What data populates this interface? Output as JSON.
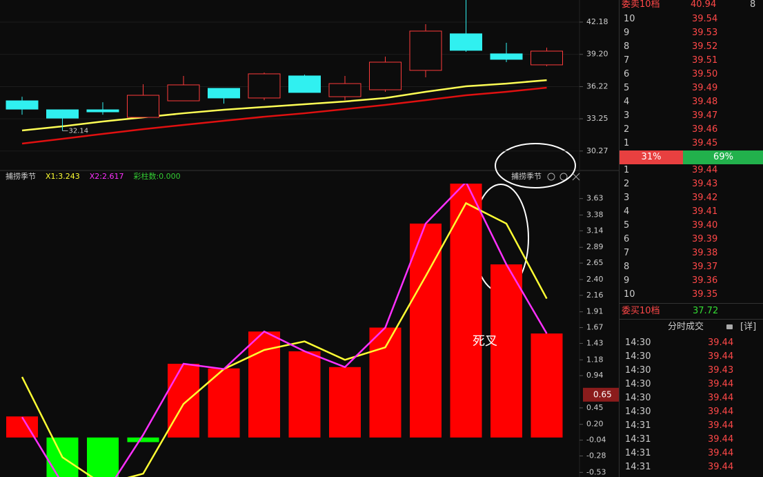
{
  "chart_data": [
    {
      "type": "candlestick",
      "open": [
        34.91,
        34.08,
        34.08,
        33.38,
        34.91,
        36.06,
        35.17,
        37.21,
        35.29,
        35.93,
        37.72,
        41.1,
        39.25,
        38.23
      ],
      "high": [
        35.29,
        34.1,
        34.78,
        36.44,
        37.21,
        36.06,
        37.52,
        37.33,
        37.21,
        38.99,
        41.99,
        44.22,
        40.27,
        39.82
      ],
      "low": [
        33.63,
        32.14,
        33.63,
        33.38,
        34.91,
        34.65,
        34.97,
        35.68,
        34.97,
        35.74,
        37.08,
        39.44,
        38.48,
        38.1
      ],
      "close": [
        34.14,
        33.31,
        33.89,
        35.42,
        36.38,
        35.17,
        37.4,
        35.68,
        36.5,
        38.48,
        41.35,
        39.57,
        38.74,
        39.5
      ],
      "up_color": "#ff3b3b",
      "down_color": "#30f0f0",
      "series": [
        {
          "color": "#ffff55",
          "values": [
            32.17,
            32.55,
            33.0,
            33.38,
            33.76,
            34.08,
            34.34,
            34.59,
            34.85,
            35.17,
            35.74,
            36.25,
            36.5,
            36.82
          ]
        },
        {
          "color": "#e01010",
          "values": [
            30.96,
            31.4,
            31.85,
            32.29,
            32.68,
            33.06,
            33.44,
            33.76,
            34.14,
            34.53,
            34.97,
            35.42,
            35.74,
            36.12
          ]
        }
      ],
      "annotation": {
        "text": "32.14",
        "index": 1,
        "value": 32.14
      },
      "ylim": [
        28.6,
        44.22
      ],
      "yticks": [
        42.18,
        {
          "value": 39.2,
          "label": "39.20"
        },
        36.22,
        33.25,
        30.27
      ],
      "grid": true
    },
    {
      "type": "combo",
      "title": "捕捞季节",
      "indicator_label": "捕捞季节",
      "series": [
        {
          "name": "X1:3.243",
          "type": "line",
          "color": "#ffff33",
          "values": [
            0.92,
            -0.3,
            -0.71,
            -0.55,
            0.51,
            1.04,
            1.33,
            1.46,
            1.18,
            1.37,
            2.45,
            3.56,
            3.25,
            2.11
          ]
        },
        {
          "name": "X2:2.617",
          "type": "line",
          "color": "#ff30ff",
          "values": [
            0.31,
            -0.7,
            -0.91,
            0.04,
            1.12,
            1.04,
            1.61,
            1.31,
            1.07,
            1.67,
            3.25,
            3.88,
            2.63,
            1.58
          ]
        },
        {
          "name": "彩柱数:0.000",
          "type": "bar",
          "color": "#ff0000",
          "negative_color": "#00ff00",
          "legend_color": "#33cc33",
          "values": [
            0.32,
            -0.7,
            -0.7,
            -0.07,
            1.12,
            1.05,
            1.61,
            1.31,
            1.07,
            1.67,
            3.25,
            3.88,
            2.63,
            1.58
          ]
        }
      ],
      "annotation": {
        "text": "死叉"
      },
      "cursor_value": 0.65,
      "ylim": [
        -0.6,
        3.92
      ],
      "yticks": [
        3.63,
        3.38,
        3.14,
        2.89,
        2.65,
        {
          "value": 2.4,
          "label": "2.40"
        },
        2.16,
        1.91,
        1.67,
        1.43,
        1.18,
        0.94,
        0.45,
        {
          "value": 0.2,
          "label": "0.20"
        },
        -0.04,
        -0.28,
        -0.53
      ],
      "grid": false
    }
  ],
  "order_book": {
    "ask_title": "委卖10档",
    "ask_ref": "40.94",
    "ask_extra": "8",
    "asks": [
      [
        10,
        "39.54"
      ],
      [
        9,
        "39.53"
      ],
      [
        8,
        "39.52"
      ],
      [
        7,
        "39.51"
      ],
      [
        6,
        "39.50"
      ],
      [
        5,
        "39.49"
      ],
      [
        4,
        "39.48"
      ],
      [
        3,
        "39.47"
      ],
      [
        2,
        "39.46"
      ],
      [
        1,
        "39.45"
      ]
    ],
    "ratio": [
      "31%",
      "69%"
    ],
    "bids": [
      [
        1,
        "39.44"
      ],
      [
        2,
        "39.43"
      ],
      [
        3,
        "39.42"
      ],
      [
        4,
        "39.41"
      ],
      [
        5,
        "39.40"
      ],
      [
        6,
        "39.39"
      ],
      [
        7,
        "39.38"
      ],
      [
        8,
        "39.37"
      ],
      [
        9,
        "39.36"
      ],
      [
        10,
        "39.35"
      ]
    ],
    "bid_title": "委买10档",
    "bid_ref": "37.72"
  },
  "trades": {
    "title": "分时成交",
    "detail": "[详]",
    "rows": [
      [
        "14:30",
        "39.44"
      ],
      [
        "14:30",
        "39.44"
      ],
      [
        "14:30",
        "39.43"
      ],
      [
        "14:30",
        "39.44"
      ],
      [
        "14:30",
        "39.44"
      ],
      [
        "14:30",
        "39.44"
      ],
      [
        "14:31",
        "39.44"
      ],
      [
        "14:31",
        "39.44"
      ],
      [
        "14:31",
        "39.44"
      ],
      [
        "14:31",
        "39.44"
      ]
    ]
  }
}
